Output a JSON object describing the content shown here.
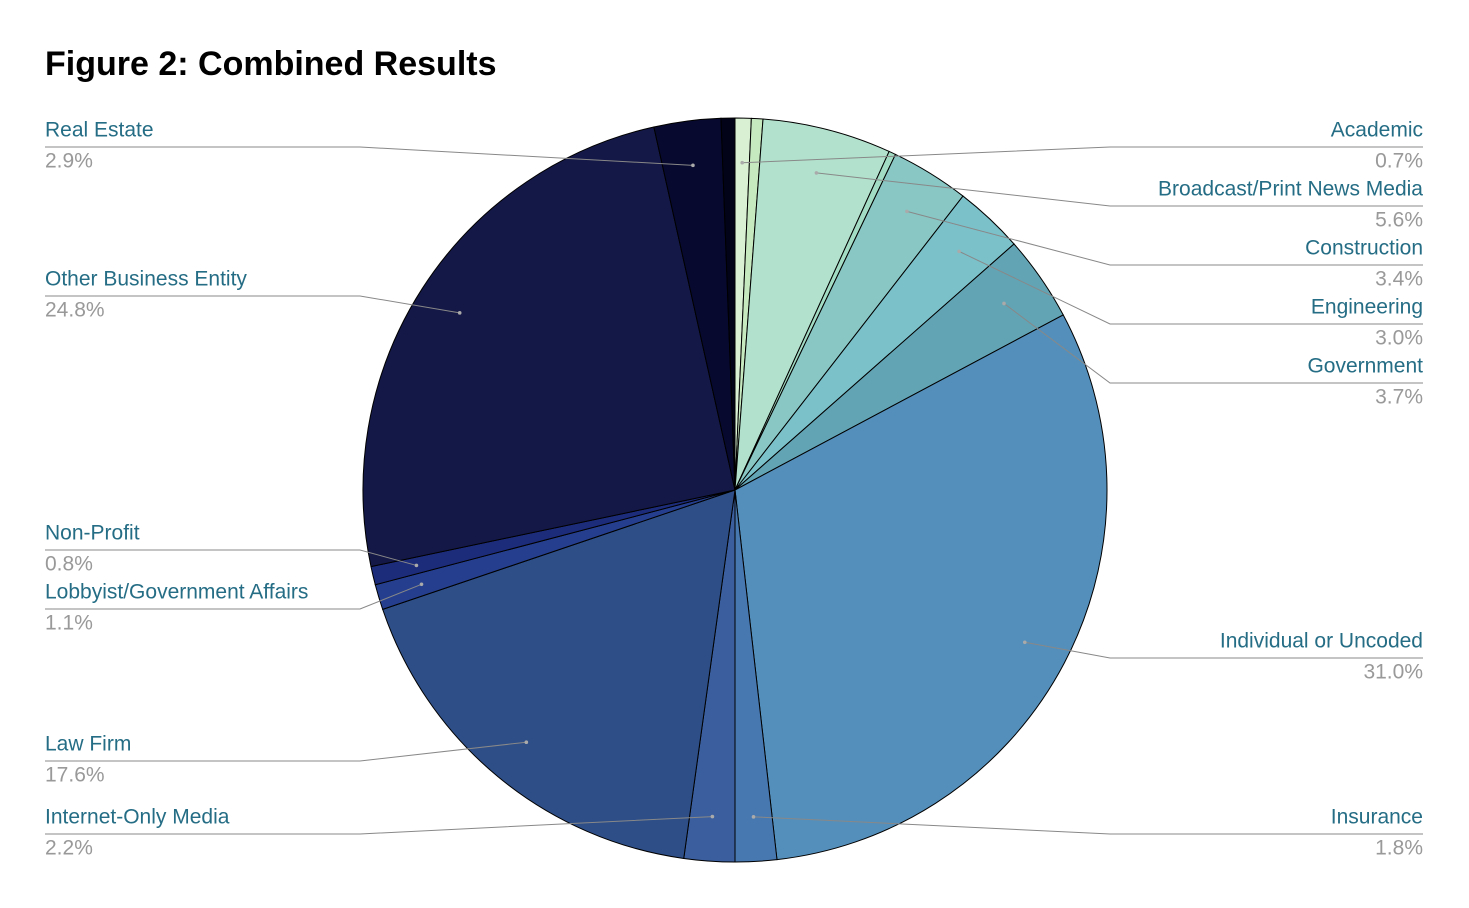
{
  "chart_data": {
    "type": "pie",
    "title": "Figure 2: Combined Results",
    "categories": [
      "Academic",
      null,
      "Broadcast/Print News Media",
      null,
      "Construction",
      "Engineering",
      "Government",
      "Individual or Uncoded",
      "Insurance",
      "Internet-Only Media",
      "Law Firm",
      "Lobbyist/Government Affairs",
      "Non-Profit",
      "Other Business Entity",
      "Real Estate",
      null
    ],
    "values": [
      0.7,
      0.5,
      5.6,
      0.3,
      3.4,
      3.0,
      3.7,
      31.0,
      1.8,
      2.2,
      17.6,
      1.1,
      0.8,
      24.8,
      2.9,
      0.6
    ],
    "value_labels": [
      "0.7%",
      null,
      "5.6%",
      null,
      "3.4%",
      "3.0%",
      "3.7%",
      "31.0%",
      "1.8%",
      "2.2%",
      "17.6%",
      "1.1%",
      "0.8%",
      "24.8%",
      "2.9%",
      null
    ],
    "colors": [
      "#d9f0d3",
      "#c7e9c0",
      "#b2e2cd",
      "#a3dcc4",
      "#88c7c4",
      "#7bc1ca",
      "#63a4b4",
      "#548fbb",
      "#4878b0",
      "#3b5f9e",
      "#2d4e87",
      "#253f8e",
      "#1d2b7b",
      "#141846",
      "#07092f",
      "#020318"
    ]
  }
}
